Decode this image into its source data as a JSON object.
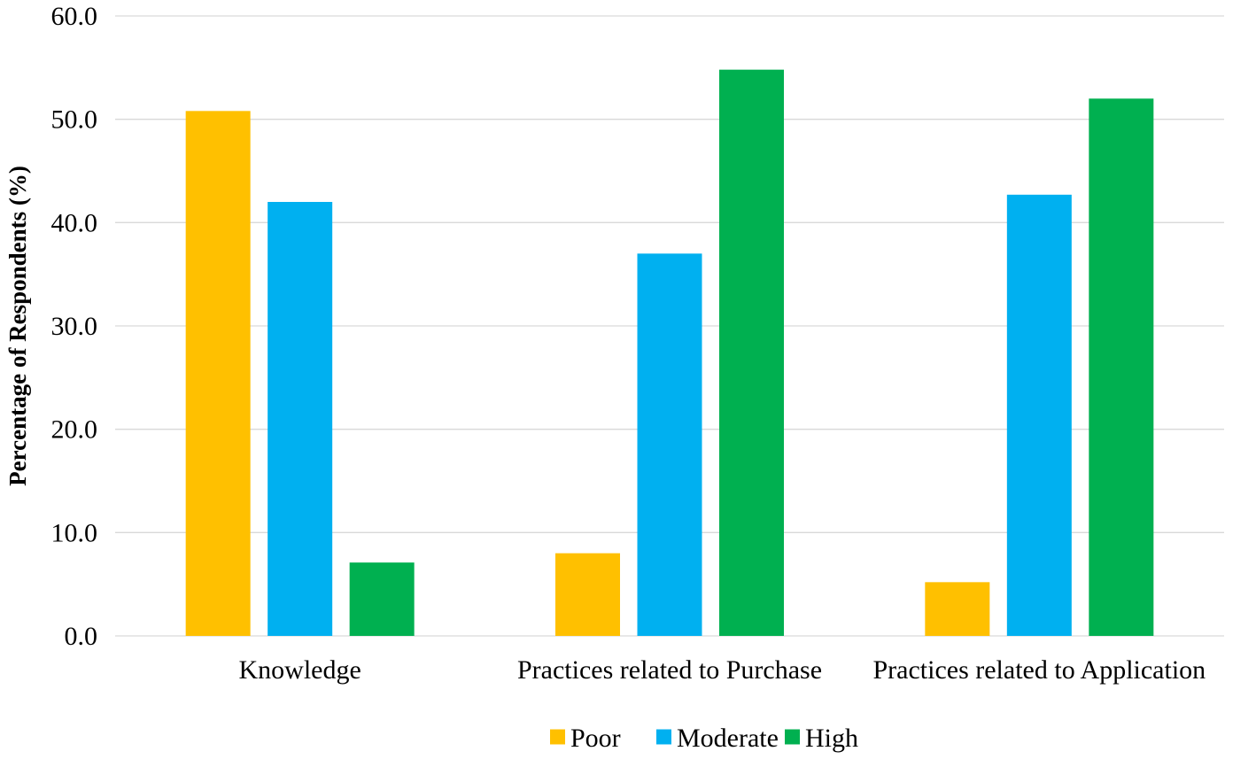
{
  "chart_data": {
    "type": "bar",
    "title": "",
    "xlabel": "",
    "ylabel": "Percentage of Respondents (%)",
    "categories": [
      "Knowledge",
      "Practices related to Purchase",
      "Practices related to Application"
    ],
    "series": [
      {
        "name": "Poor",
        "color": "#FFC000",
        "values": [
          50.8,
          8.0,
          5.2
        ]
      },
      {
        "name": "Moderate",
        "color": "#00B0F0",
        "values": [
          42.0,
          37.0,
          42.7
        ]
      },
      {
        "name": "High",
        "color": "#00B050",
        "values": [
          7.1,
          54.8,
          52.0
        ]
      }
    ],
    "ylim": [
      0,
      60
    ],
    "yticks": [
      "0.0",
      "10.0",
      "20.0",
      "30.0",
      "40.0",
      "50.0",
      "60.0"
    ],
    "grid": true,
    "legend_position": "bottom"
  }
}
